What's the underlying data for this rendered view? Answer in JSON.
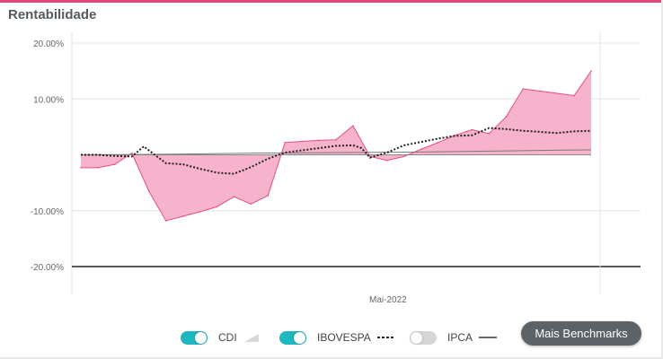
{
  "title": "Rentabilidade",
  "colors": {
    "accent": "#e5447f",
    "area_fill": "#f7b3cb",
    "area_line": "#e34d83",
    "toggle_on": "#1fb7be",
    "toggle_off": "#d6d6d6"
  },
  "chart_data": {
    "type": "area",
    "title": "Rentabilidade",
    "xlabel": "",
    "ylabel": "",
    "ylim": [
      -25,
      20
    ],
    "y_ticks": [
      20,
      10,
      -10,
      -20
    ],
    "y_tick_labels": [
      "20.00%",
      "10.00%",
      "-10.00%",
      "-20.00%"
    ],
    "x_ticks": [
      {
        "label": "Mai-2022",
        "x": 17
      }
    ],
    "x_range": [
      0,
      30
    ],
    "grid": true,
    "legend_position": "bottom",
    "series": [
      {
        "name": "CDI",
        "style": "area",
        "enabled": true,
        "x": [
          0,
          1,
          2,
          3,
          4,
          5,
          6,
          7,
          8,
          9,
          10,
          11,
          12,
          13,
          14,
          15,
          16,
          17,
          18,
          19,
          20,
          21,
          22,
          23,
          24,
          25,
          26,
          27,
          28,
          29,
          30
        ],
        "values": [
          -2.3,
          -2.3,
          -1.7,
          0.3,
          -6.5,
          -11.8,
          -11,
          -10.2,
          -9.3,
          -7.5,
          -8.8,
          -7.3,
          2.2,
          2.4,
          2.6,
          2.7,
          5.2,
          -0.3,
          -1,
          -0.3,
          1,
          2.2,
          3.5,
          4.5,
          3.8,
          6.8,
          11.8,
          11.4,
          11,
          10.6,
          15
        ]
      },
      {
        "name": "IBOVESPA",
        "style": "dotted",
        "enabled": true,
        "x": [
          0,
          1,
          2,
          3,
          3.7,
          4,
          5,
          6,
          7,
          8,
          9,
          10,
          11,
          12,
          13,
          14,
          15,
          16,
          16.5,
          17,
          18,
          19,
          20,
          21,
          22,
          23,
          24,
          25,
          26,
          27,
          28,
          29,
          30
        ],
        "values": [
          0,
          0,
          -0.2,
          -0.3,
          1.5,
          0.8,
          -1.5,
          -1.7,
          -2.5,
          -3.2,
          -3.4,
          -2.2,
          -0.7,
          0.4,
          0.8,
          1.2,
          1.6,
          1.7,
          1.2,
          -0.5,
          0.4,
          1.7,
          2.3,
          2.9,
          3.4,
          3.5,
          4.8,
          4.6,
          4.3,
          4.1,
          3.9,
          4.2,
          4.3
        ]
      },
      {
        "name": "IPCA",
        "style": "solid",
        "enabled": false,
        "x": [
          0,
          5,
          10,
          15,
          20,
          25,
          30
        ],
        "values": [
          0,
          0.1,
          0.3,
          0.4,
          0.5,
          0.7,
          0.9
        ]
      }
    ]
  },
  "legend": [
    {
      "label": "CDI",
      "enabled": true,
      "symbol": "area-icon"
    },
    {
      "label": "IBOVESPA",
      "enabled": true,
      "symbol": "dotted-line-icon"
    },
    {
      "label": "IPCA",
      "enabled": false,
      "symbol": "solid-line-icon"
    }
  ],
  "benchmarks_button": "Mais Benchmarks"
}
